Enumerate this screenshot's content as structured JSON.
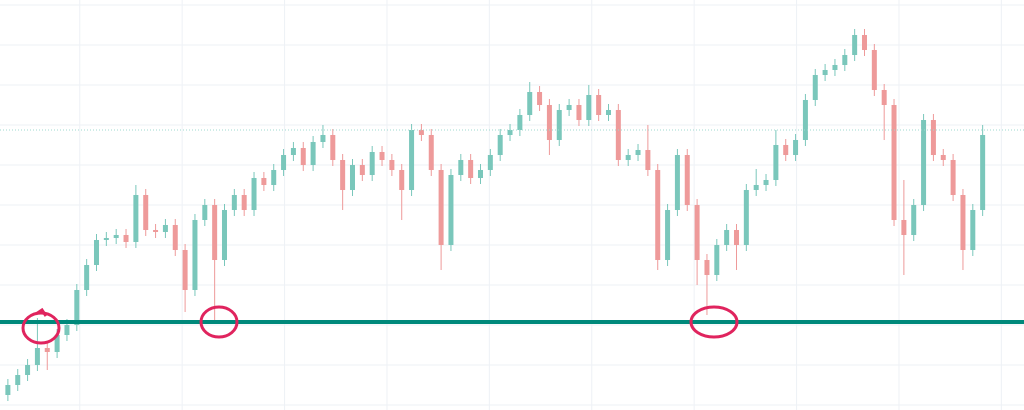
{
  "chart_data": {
    "type": "candlestick",
    "up_color": "#7ac7bb",
    "down_color": "#ee9a9a",
    "ylim": [
      0,
      410
    ],
    "yticks": [
      5,
      45,
      85,
      125,
      165,
      205,
      245,
      285,
      325,
      365,
      405
    ],
    "xlim": [
      -0.8,
      103.2
    ],
    "xticks": [
      7.3,
      17.7,
      28.1,
      38.5,
      48.9,
      59.3,
      69.7,
      80.1,
      90.5,
      100.9
    ],
    "grid": true,
    "grid_color": "#eef1f6",
    "hlines": [
      {
        "value": 88,
        "color": "#00897b",
        "style": "solid"
      },
      {
        "value": 280,
        "color": "#9fd8cf",
        "style": "dotted"
      }
    ],
    "open": [
      15,
      25,
      35,
      45,
      62,
      58,
      75,
      85,
      120,
      145,
      170,
      172,
      175,
      168,
      215,
      180,
      178,
      185,
      160,
      120,
      190,
      205,
      150,
      200,
      215,
      200,
      232,
      225,
      240,
      255,
      262,
      245,
      268,
      275,
      250,
      220,
      245,
      235,
      258,
      250,
      240,
      220,
      280,
      275,
      240,
      165,
      235,
      250,
      232,
      240,
      255,
      275,
      280,
      295,
      318,
      305,
      270,
      300,
      305,
      290,
      315,
      295,
      300,
      250,
      255,
      260,
      240,
      150,
      200,
      255,
      205,
      150,
      135,
      165,
      180,
      165,
      220,
      225,
      230,
      265,
      255,
      270,
      310,
      335,
      340,
      345,
      355,
      375,
      360,
      320,
      305,
      190,
      175,
      205,
      290,
      255,
      250,
      215,
      160,
      200
    ],
    "high": [
      31,
      41,
      51,
      92,
      68,
      81,
      91,
      126,
      151,
      176,
      178,
      181,
      181,
      225,
      221,
      186,
      191,
      191,
      166,
      196,
      211,
      211,
      206,
      221,
      221,
      238,
      238,
      246,
      261,
      268,
      268,
      274,
      285,
      281,
      256,
      251,
      251,
      264,
      264,
      256,
      246,
      286,
      286,
      281,
      246,
      241,
      256,
      256,
      246,
      261,
      281,
      286,
      301,
      328,
      324,
      311,
      306,
      311,
      311,
      325,
      321,
      306,
      306,
      261,
      266,
      285,
      246,
      206,
      261,
      261,
      211,
      156,
      171,
      186,
      186,
      226,
      241,
      236,
      280,
      271,
      276,
      316,
      341,
      346,
      351,
      361,
      381,
      381,
      366,
      326,
      311,
      230,
      211,
      296,
      296,
      261,
      256,
      221,
      206,
      285
    ],
    "low": [
      9,
      19,
      29,
      39,
      40,
      52,
      69,
      79,
      114,
      139,
      164,
      166,
      162,
      162,
      174,
      172,
      172,
      154,
      98,
      114,
      184,
      90,
      144,
      194,
      194,
      194,
      219,
      219,
      234,
      249,
      239,
      239,
      262,
      244,
      200,
      214,
      229,
      229,
      244,
      234,
      190,
      214,
      269,
      234,
      140,
      159,
      229,
      226,
      226,
      234,
      249,
      269,
      274,
      289,
      299,
      255,
      264,
      294,
      284,
      284,
      289,
      289,
      244,
      244,
      249,
      234,
      140,
      144,
      194,
      199,
      125,
      95,
      129,
      159,
      140,
      159,
      214,
      219,
      224,
      249,
      249,
      264,
      304,
      329,
      334,
      339,
      349,
      354,
      314,
      270,
      184,
      135,
      169,
      199,
      249,
      244,
      209,
      140,
      154,
      194
    ],
    "close": [
      25,
      35,
      45,
      62,
      58,
      75,
      85,
      120,
      145,
      170,
      172,
      175,
      168,
      215,
      180,
      178,
      185,
      160,
      120,
      190,
      205,
      150,
      200,
      215,
      200,
      232,
      225,
      240,
      255,
      262,
      245,
      268,
      275,
      250,
      220,
      245,
      235,
      258,
      250,
      240,
      220,
      280,
      275,
      240,
      165,
      235,
      250,
      232,
      240,
      255,
      275,
      280,
      295,
      318,
      305,
      270,
      300,
      305,
      290,
      315,
      295,
      300,
      250,
      255,
      260,
      240,
      150,
      200,
      255,
      205,
      150,
      135,
      165,
      180,
      165,
      220,
      225,
      230,
      265,
      255,
      270,
      310,
      335,
      340,
      345,
      355,
      375,
      360,
      320,
      305,
      190,
      175,
      205,
      290,
      255,
      250,
      215,
      160,
      200,
      275
    ]
  }
}
